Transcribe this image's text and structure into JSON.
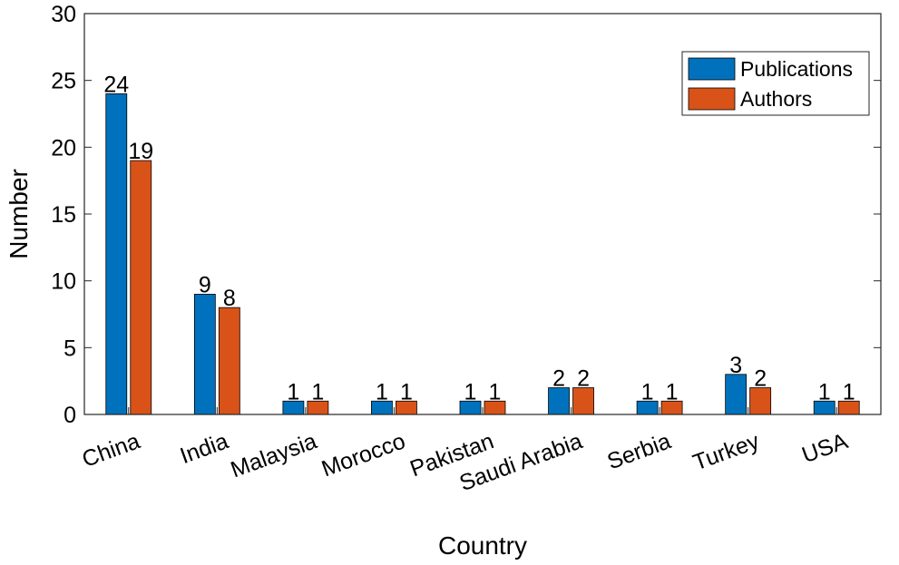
{
  "chart_data": {
    "type": "bar",
    "title": "",
    "xlabel": "Country",
    "ylabel": "Number",
    "ylim": [
      0,
      30
    ],
    "yticks": [
      0,
      5,
      10,
      15,
      20,
      25,
      30
    ],
    "categories": [
      "China",
      "India",
      "Malaysia",
      "Morocco",
      "Pakistan",
      "Saudi Arabia",
      "Serbia",
      "Turkey",
      "USA"
    ],
    "series": [
      {
        "name": "Publications",
        "color": "#0072BD",
        "values": [
          24,
          9,
          1,
          1,
          1,
          2,
          1,
          3,
          1
        ]
      },
      {
        "name": "Authors",
        "color": "#D95319",
        "values": [
          19,
          8,
          1,
          1,
          1,
          2,
          1,
          2,
          1
        ]
      }
    ],
    "data_labels": true,
    "legend": {
      "position": "top-right",
      "entries": [
        "Publications",
        "Authors"
      ]
    },
    "grid": false
  }
}
